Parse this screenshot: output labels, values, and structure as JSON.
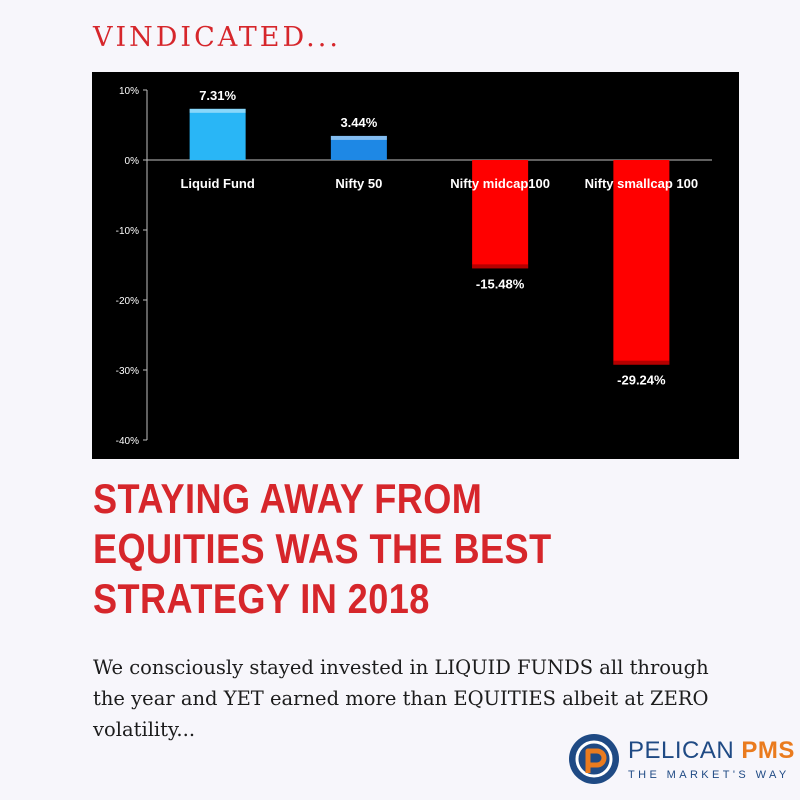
{
  "kicker": "VINDICATED...",
  "headline": "STAYING AWAY FROM EQUITIES WAS THE BEST STRATEGY IN 2018",
  "body": "We consciously stayed invested in LIQUID FUNDS all through the year and YET earned more than EQUITIES albeit at ZERO volatility...",
  "logo": {
    "name_main": "PELICAN",
    "name_accent": "PMS",
    "tagline": "THE MARKET'S WAY",
    "colors": {
      "primary": "#1f4a84",
      "accent": "#ea7b1e"
    },
    "icon": "pelican-p-icon"
  },
  "colors": {
    "accent_red": "#d6262b",
    "chart_bg": "#000000",
    "positive_primary": "#29b6f6",
    "positive_secondary": "#1e88e5",
    "negative": "#ff0000"
  },
  "chart_data": {
    "type": "bar",
    "categories": [
      "Liquid Fund",
      "Nifty 50",
      "Nifty midcap100",
      "Nifty smallcap 100"
    ],
    "values": [
      7.31,
      3.44,
      -15.48,
      -29.24
    ],
    "data_labels": [
      "7.31%",
      "3.44%",
      "-15.48%",
      "-29.24%"
    ],
    "bar_colors": [
      "#29b6f6",
      "#1e88e5",
      "#ff0000",
      "#ff0000"
    ],
    "ylim": [
      -40,
      10
    ],
    "yticks": [
      10,
      0,
      -10,
      -20,
      -30,
      -40
    ],
    "ytick_labels": [
      "10%",
      "0%",
      "-10%",
      "-20%",
      "-30%",
      "-40%"
    ],
    "title": "",
    "xlabel": "",
    "ylabel": "",
    "grid": false,
    "legend": "none"
  }
}
